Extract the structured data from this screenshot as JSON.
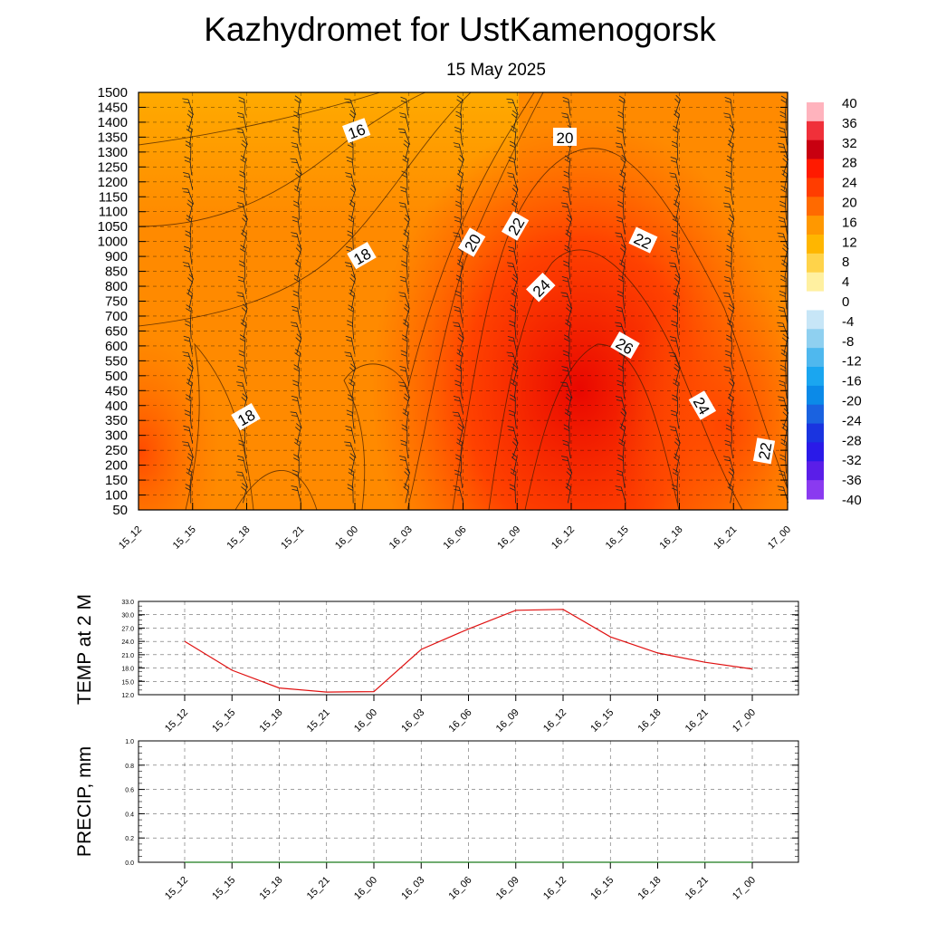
{
  "title": "Kazhydromet  for UstKamenogorsk",
  "subtitle": "15 May 2025",
  "colors": {
    "cold_end": "#7a2ee8",
    "zero": "#ffffff",
    "warm_end": "#ffb3bd",
    "temp_line": "#e01010",
    "precip_line": "#1a7a1a"
  },
  "chart_data": [
    {
      "type": "heatmap",
      "name": "cross-section",
      "x": [
        "15_12",
        "15_15",
        "15_18",
        "15_21",
        "16_00",
        "16_03",
        "16_06",
        "16_09",
        "16_12",
        "16_15",
        "16_18",
        "16_21",
        "17_00"
      ],
      "y": [
        50,
        100,
        150,
        200,
        250,
        300,
        350,
        400,
        450,
        500,
        550,
        600,
        650,
        700,
        750,
        800,
        850,
        900,
        1000,
        1050,
        1100,
        1150,
        1200,
        1250,
        1300,
        1350,
        1400,
        1450,
        1500
      ],
      "ylim": [
        50,
        1500
      ],
      "colorbar_ticks": [
        40,
        36,
        32,
        28,
        24,
        20,
        16,
        12,
        8,
        4,
        0,
        -4,
        -8,
        -12,
        -16,
        -20,
        -24,
        -28,
        -32,
        -36,
        -40
      ],
      "contour_labels": [
        "16",
        "20",
        "18",
        "20",
        "22",
        "22",
        "24",
        "26",
        "18",
        "24",
        "22"
      ],
      "grid": true
    },
    {
      "type": "line",
      "name": "temp-2m",
      "ylabel": "TEMP at 2 M",
      "x": [
        "15_12",
        "15_15",
        "15_18",
        "15_21",
        "16_00",
        "16_03",
        "16_06",
        "16_09",
        "16_12",
        "16_15",
        "16_18",
        "16_21",
        "17_00"
      ],
      "series": [
        {
          "values": [
            24.0,
            17.5,
            13.5,
            12.6,
            12.7,
            22.2,
            26.8,
            31.0,
            31.2,
            25.0,
            21.4,
            19.3,
            17.8
          ]
        }
      ],
      "yticks": [
        "33.0",
        "30.0",
        "27.0",
        "24.0",
        "21.0",
        "18.0",
        "15.0",
        "12.0"
      ],
      "ylim": [
        12,
        33
      ],
      "grid": true
    },
    {
      "type": "line",
      "name": "precip",
      "ylabel": "PRECIP, mm",
      "x": [
        "15_12",
        "15_15",
        "15_18",
        "15_21",
        "16_00",
        "16_03",
        "16_06",
        "16_09",
        "16_12",
        "16_15",
        "16_18",
        "16_21",
        "17_00"
      ],
      "series": [
        {
          "values": [
            0,
            0,
            0,
            0,
            0,
            0,
            0,
            0,
            0,
            0,
            0,
            0,
            0
          ]
        }
      ],
      "yticks": [
        "1.0",
        "0.8",
        "0.6",
        "0.4",
        "0.2",
        "0.0"
      ],
      "ylim": [
        0,
        1
      ],
      "grid": true
    }
  ]
}
